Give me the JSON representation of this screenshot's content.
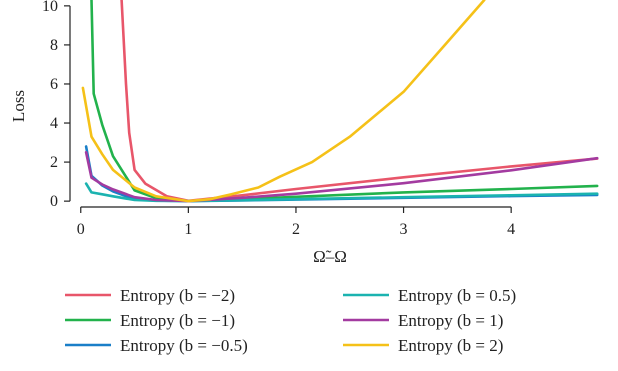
{
  "chart_data": {
    "type": "line",
    "title": "",
    "xlabel": "Ω̃–Ω",
    "ylabel": "Loss",
    "xlim": [
      -0.1,
      4.9
    ],
    "ylim": [
      -0.3,
      10.3
    ],
    "xticks": [
      0,
      1,
      2,
      3,
      4
    ],
    "yticks": [
      0,
      2,
      4,
      6,
      8,
      10
    ],
    "grid": false,
    "legend_position": "bottom, two columns",
    "series": [
      {
        "name": "Entropy (b = −2)",
        "color": "#e8566a",
        "x": [
          0.38,
          0.42,
          0.45,
          0.5,
          0.6,
          0.8,
          1.0,
          1.5,
          2.0,
          3.0,
          4.0,
          4.8
        ],
        "y": [
          10.3,
          6.0,
          3.5,
          1.6,
          0.9,
          0.25,
          0.02,
          0.3,
          0.62,
          1.22,
          1.78,
          2.18
        ]
      },
      {
        "name": "Entropy (b = −1)",
        "color": "#22b24c",
        "x": [
          0.1,
          0.12,
          0.2,
          0.3,
          0.5,
          0.7,
          1.0,
          1.5,
          2.0,
          3.0,
          4.0,
          4.8
        ],
        "y": [
          10.3,
          5.5,
          3.9,
          2.3,
          0.55,
          0.15,
          0.0,
          0.1,
          0.22,
          0.45,
          0.62,
          0.78
        ]
      },
      {
        "name": "Entropy (b = −0.5)",
        "color": "#1a7fc8",
        "x": [
          0.05,
          0.1,
          0.2,
          0.3,
          0.5,
          0.7,
          1.0,
          1.5,
          2.0,
          3.0,
          4.0,
          4.8
        ],
        "y": [
          2.8,
          1.3,
          0.8,
          0.5,
          0.1,
          0.03,
          0.0,
          0.04,
          0.08,
          0.17,
          0.26,
          0.32
        ]
      },
      {
        "name": "Entropy (b = 0.5)",
        "color": "#1bb3b0",
        "x": [
          0.05,
          0.1,
          0.2,
          0.3,
          0.5,
          0.7,
          1.0,
          1.5,
          2.0,
          3.0,
          4.0,
          4.8
        ],
        "y": [
          0.9,
          0.45,
          0.35,
          0.25,
          0.06,
          0.02,
          0.0,
          0.05,
          0.1,
          0.2,
          0.3,
          0.38
        ]
      },
      {
        "name": "Entropy (b = 1)",
        "color": "#a33ba0",
        "x": [
          0.05,
          0.1,
          0.2,
          0.3,
          0.5,
          0.7,
          1.0,
          1.5,
          2.0,
          3.0,
          4.0,
          4.8
        ],
        "y": [
          2.5,
          1.2,
          0.85,
          0.6,
          0.2,
          0.06,
          0.0,
          0.17,
          0.38,
          0.92,
          1.58,
          2.2
        ]
      },
      {
        "name": "Entropy (b = 2)",
        "color": "#f5c118",
        "x": [
          0.02,
          0.1,
          0.2,
          0.3,
          0.5,
          0.7,
          1.0,
          1.2,
          1.4,
          1.65,
          1.85,
          2.15,
          2.5,
          3.0,
          3.4,
          3.75
        ],
        "y": [
          5.8,
          3.3,
          2.4,
          1.6,
          0.7,
          0.25,
          0.0,
          0.1,
          0.35,
          0.7,
          1.25,
          2.0,
          3.3,
          5.6,
          8.1,
          10.3
        ]
      }
    ]
  }
}
